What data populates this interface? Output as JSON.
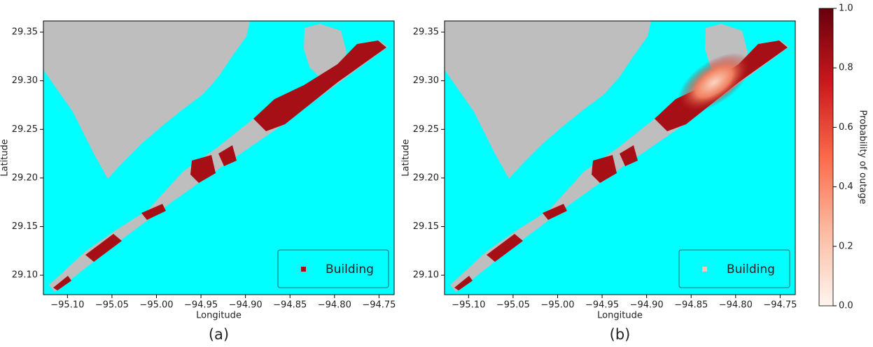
{
  "chart_data": [
    {
      "type": "map",
      "caption": "(a)",
      "xlabel": "Longitude",
      "ylabel": "Latitude",
      "xlim": [
        -95.127,
        -94.733
      ],
      "ylim": [
        29.08,
        29.3615
      ],
      "xticks": [
        {
          "value": -95.1,
          "label": "−95.10"
        },
        {
          "value": -95.05,
          "label": "−95.05"
        },
        {
          "value": -95.0,
          "label": "−95.00"
        },
        {
          "value": -94.95,
          "label": "−94.95"
        },
        {
          "value": -94.9,
          "label": "−94.90"
        },
        {
          "value": -94.85,
          "label": "−94.85"
        },
        {
          "value": -94.8,
          "label": "−94.80"
        },
        {
          "value": -94.75,
          "label": "−94.75"
        }
      ],
      "yticks": [
        {
          "value": 29.1,
          "label": "29.10"
        },
        {
          "value": 29.15,
          "label": "29.15"
        },
        {
          "value": 29.2,
          "label": "29.20"
        },
        {
          "value": 29.25,
          "label": "29.25"
        },
        {
          "value": 29.3,
          "label": "29.30"
        },
        {
          "value": 29.35,
          "label": "29.35"
        }
      ],
      "legend": {
        "label": "Building",
        "color": "#a50f15"
      }
    },
    {
      "type": "map",
      "caption": "(b)",
      "xlabel": "Longitude",
      "ylabel": "Latitude",
      "xlim": [
        -95.127,
        -94.733
      ],
      "ylim": [
        29.08,
        29.3615
      ],
      "xticks": [
        {
          "value": -95.1,
          "label": "−95.10"
        },
        {
          "value": -95.05,
          "label": "−95.05"
        },
        {
          "value": -95.0,
          "label": "−95.00"
        },
        {
          "value": -94.95,
          "label": "−94.95"
        },
        {
          "value": -94.9,
          "label": "−94.90"
        },
        {
          "value": -94.85,
          "label": "−94.85"
        },
        {
          "value": -94.8,
          "label": "−94.80"
        },
        {
          "value": -94.75,
          "label": "−94.75"
        }
      ],
      "yticks": [
        {
          "value": 29.1,
          "label": "29.10"
        },
        {
          "value": 29.15,
          "label": "29.15"
        },
        {
          "value": 29.2,
          "label": "29.20"
        },
        {
          "value": 29.25,
          "label": "29.25"
        },
        {
          "value": 29.3,
          "label": "29.30"
        },
        {
          "value": 29.35,
          "label": "29.35"
        }
      ],
      "legend": {
        "label": "Building",
        "color": "#fcc5b0"
      }
    }
  ],
  "colorbar": {
    "label": "Probability of outage",
    "lim": [
      0,
      1
    ],
    "ticks": [
      {
        "value": 0,
        "label": "0.0"
      },
      {
        "value": 0.2,
        "label": "0.2"
      },
      {
        "value": 0.4,
        "label": "0.4"
      },
      {
        "value": 0.6,
        "label": "0.6"
      },
      {
        "value": 0.8,
        "label": "0.8"
      },
      {
        "value": 1,
        "label": "1.0"
      }
    ]
  }
}
